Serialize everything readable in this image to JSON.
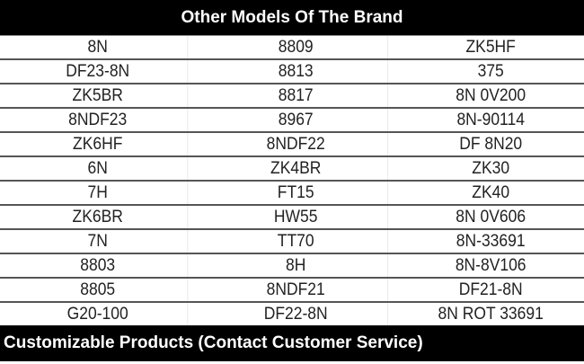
{
  "title": "Other Models Of The Brand",
  "rows": [
    [
      "8N",
      "8809",
      "ZK5HF"
    ],
    [
      "DF23-8N",
      "8813",
      "375"
    ],
    [
      "ZK5BR",
      "8817",
      "8N 0V200"
    ],
    [
      "8NDF23",
      "8967",
      "8N-90114"
    ],
    [
      "ZK6HF",
      "8NDF22",
      "DF 8N20"
    ],
    [
      "6N",
      "ZK4BR",
      "ZK30"
    ],
    [
      "7H",
      "FT15",
      "ZK40"
    ],
    [
      "ZK6BR",
      "HW55",
      "8N 0V606"
    ],
    [
      "7N",
      "TT70",
      "8N-33691"
    ],
    [
      "8803",
      "8H",
      "8N-8V106"
    ],
    [
      "8805",
      "8NDF21",
      "DF21-8N"
    ],
    [
      "G20-100",
      "DF22-8N",
      "8N ROT 33691"
    ]
  ],
  "footer": "Customizable Products (Contact Customer Service)"
}
